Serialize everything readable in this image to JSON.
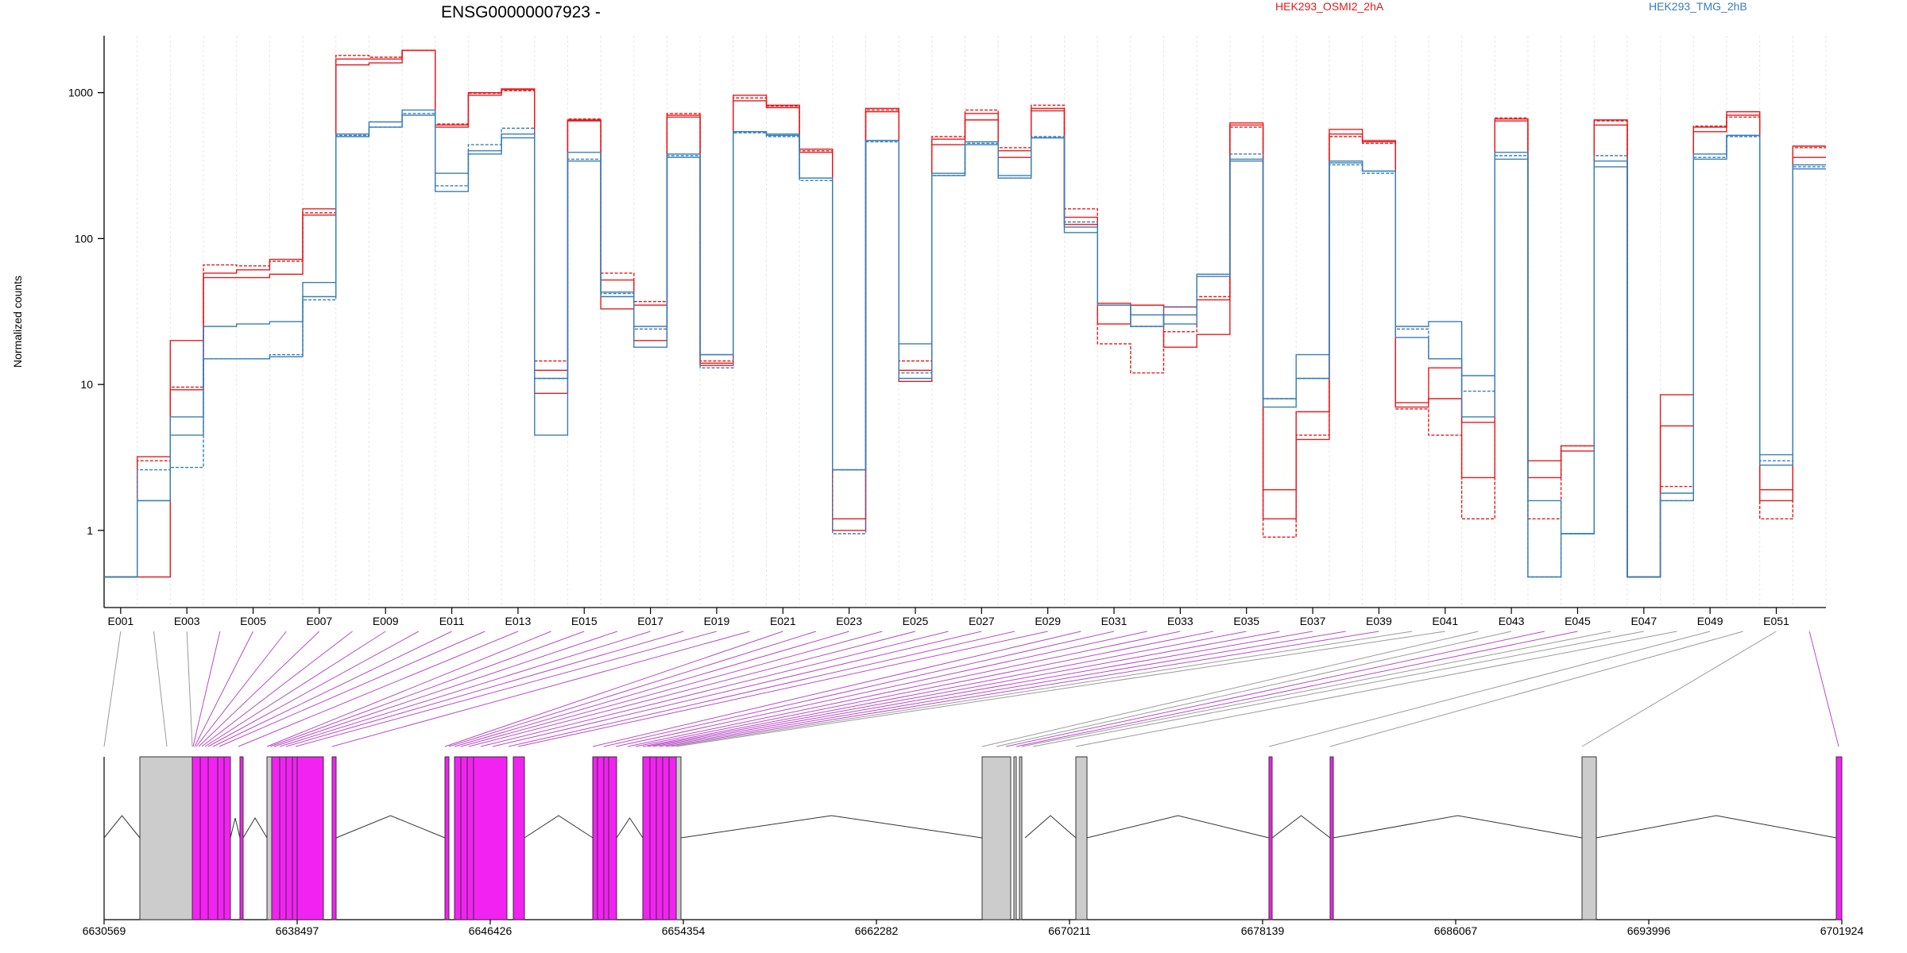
{
  "chart_data": {
    "type": "line",
    "title": "ENSG00000007923 -",
    "ylabel": "Normalized counts",
    "yscale": "log",
    "ylim": [
      0.4,
      3000
    ],
    "yticks": [
      1,
      10,
      100,
      1000
    ],
    "ytick_labels": [
      "1",
      "10",
      "100",
      "1000"
    ],
    "exon_labels": [
      "E001",
      "E003",
      "E005",
      "E007",
      "E009",
      "E011",
      "E013",
      "E015",
      "E017",
      "E019",
      "E021",
      "E023",
      "E025",
      "E027",
      "E029",
      "E031",
      "E033",
      "E035",
      "E037",
      "E039",
      "E041",
      "E043",
      "E045",
      "E047",
      "E049",
      "E051"
    ],
    "legend": [
      {
        "name": "HEK293_OSMI2_2hA",
        "color": "#e41a1c"
      },
      {
        "name": "HEK293_TMG_2hB",
        "color": "#377eb8"
      }
    ],
    "series": [
      {
        "group": "HEK293_OSMI2_2hA",
        "values": [
          0.48,
          0.48,
          9.2,
          54,
          54,
          57,
          145,
          1550,
          1600,
          1950,
          580,
          960,
          1050,
          8.7,
          640,
          33,
          20,
          680,
          14,
          880,
          790,
          390,
          1.2,
          740,
          10.5,
          440,
          650,
          360,
          750,
          125,
          36,
          35,
          34,
          38,
          620,
          1.9,
          4.2,
          560,
          470,
          7.5,
          13,
          2.3,
          660,
          2.3,
          3.8,
          650,
          0.48,
          5.2,
          580,
          700,
          1.6,
          430
        ]
      },
      {
        "group": "HEK293_OSMI2_2hA",
        "values": [
          0.48,
          3.2,
          20,
          58,
          61,
          72,
          160,
          1700,
          1700,
          1950,
          600,
          1000,
          1060,
          12.5,
          650,
          52,
          35,
          700,
          13.5,
          960,
          820,
          410,
          1.0,
          780,
          12.5,
          480,
          720,
          400,
          780,
          140,
          26,
          35,
          18,
          22,
          600,
          1.2,
          6.5,
          520,
          460,
          7.0,
          8.0,
          5.5,
          640,
          3.0,
          3.5,
          600,
          0.48,
          8.5,
          540,
          740,
          1.9,
          360
        ]
      },
      {
        "group": "HEK293_OSMI2_2hA",
        "values": [
          0.48,
          3.0,
          9.6,
          66,
          65,
          70,
          150,
          1800,
          1750,
          1950,
          610,
          990,
          1030,
          14.5,
          660,
          58,
          37,
          720,
          14.5,
          920,
          810,
          400,
          2.6,
          760,
          14.5,
          500,
          760,
          420,
          820,
          160,
          19,
          12,
          23,
          40,
          580,
          0.9,
          4.5,
          500,
          450,
          6.8,
          4.5,
          1.2,
          670,
          1.2,
          3.8,
          640,
          0.48,
          2.0,
          590,
          680,
          1.2,
          420
        ]
      },
      {
        "group": "HEK293_TMG_2hB",
        "values": [
          0.48,
          1.6,
          6.0,
          25,
          26,
          27,
          50,
          520,
          630,
          760,
          280,
          400,
          520,
          11,
          390,
          43,
          25,
          380,
          16,
          540,
          520,
          260,
          2.6,
          470,
          19,
          280,
          460,
          270,
          490,
          120,
          35,
          30,
          26,
          57,
          340,
          7.0,
          16,
          340,
          290,
          25,
          27,
          11.5,
          390,
          1.6,
          0.95,
          340,
          0.48,
          1.8,
          380,
          510,
          3.3,
          320
        ]
      },
      {
        "group": "HEK293_TMG_2hB",
        "values": [
          0.48,
          1.6,
          4.5,
          15,
          15,
          15.5,
          40,
          500,
          580,
          700,
          210,
          380,
          490,
          4.5,
          340,
          40,
          18,
          360,
          16,
          540,
          510,
          260,
          2.6,
          470,
          11,
          270,
          440,
          260,
          490,
          110,
          35,
          25,
          30,
          55,
          350,
          8,
          11,
          330,
          290,
          21,
          15,
          6.0,
          350,
          0.48,
          0.95,
          310,
          0.48,
          1.6,
          350,
          510,
          2.8,
          300
        ]
      },
      {
        "group": "HEK293_TMG_2hB",
        "values": [
          0.48,
          2.6,
          2.7,
          15,
          15,
          16,
          38,
          510,
          580,
          720,
          230,
          440,
          570,
          11,
          350,
          42,
          24,
          370,
          13,
          530,
          500,
          250,
          0.95,
          460,
          12,
          270,
          450,
          260,
          500,
          130,
          35,
          25,
          34,
          57,
          380,
          8,
          11,
          320,
          280,
          24,
          15,
          9.0,
          370,
          0.48,
          0.95,
          370,
          0.48,
          1.6,
          360,
          500,
          3.0,
          310
        ]
      }
    ],
    "genome_ticks": [
      "6630569",
      "6638497",
      "6646426",
      "6654354",
      "6662282",
      "6670211",
      "6678139",
      "6686067",
      "6693996",
      "6701924"
    ],
    "gene_model": {
      "exon_color_diff": "#f222f2",
      "exon_color_normal": "#cccccc"
    }
  }
}
